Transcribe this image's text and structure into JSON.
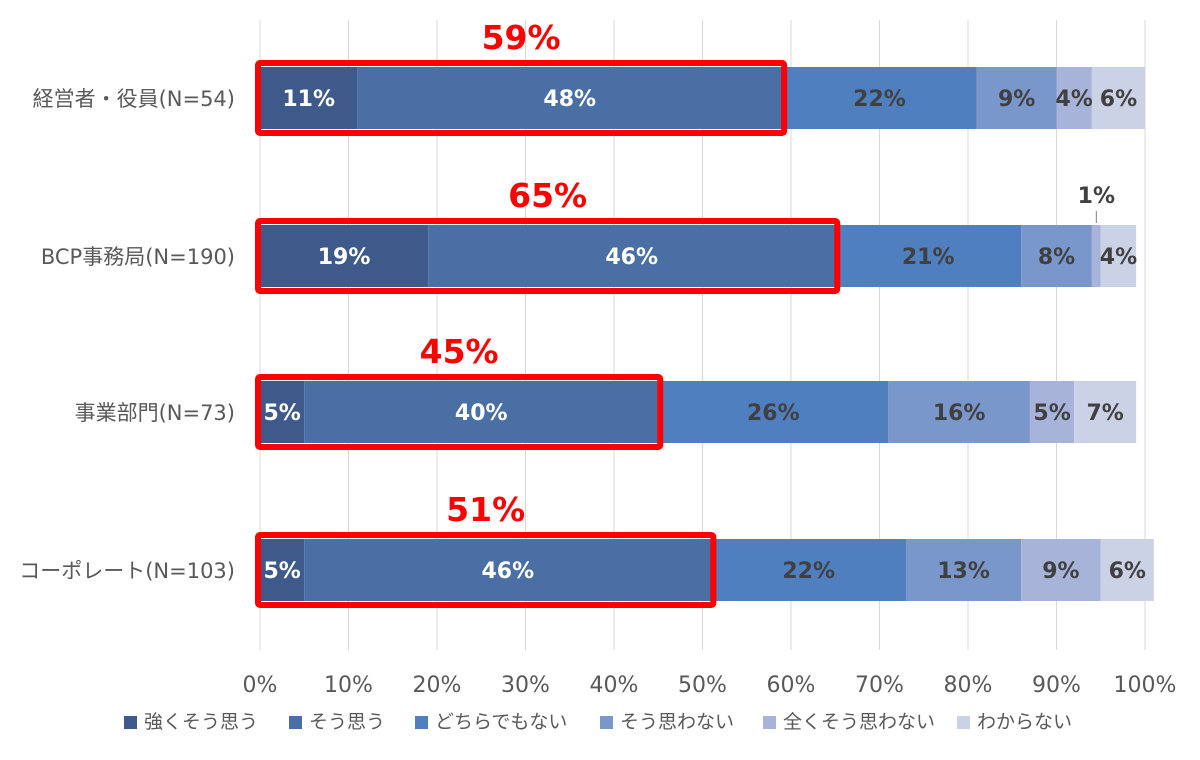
{
  "chart_data": {
    "type": "bar",
    "orientation": "horizontal",
    "stacked": true,
    "categories": [
      "経営者・役員(N=54)",
      "BCP事務局(N=190)",
      "事業部門(N=73)",
      "コーポレート(N=103)"
    ],
    "series": [
      {
        "name": "強くそう思う",
        "color": "#3d5a8a",
        "values": [
          11,
          19,
          5,
          5
        ],
        "labels": [
          "11%",
          "19%",
          "5%",
          "5%"
        ]
      },
      {
        "name": "そう思う",
        "color": "#4a6fa5",
        "values": [
          48,
          46,
          40,
          46
        ],
        "labels": [
          "48%",
          "46%",
          "40%",
          "46%"
        ]
      },
      {
        "name": "どちらでもない",
        "color": "#4f7fbf",
        "values": [
          22,
          21,
          26,
          22
        ],
        "labels": [
          "22%",
          "21%",
          "26%",
          "22%"
        ]
      },
      {
        "name": "そう思わない",
        "color": "#7a97cb",
        "values": [
          9,
          8,
          16,
          13
        ],
        "labels": [
          "9%",
          "8%",
          "16%",
          "13%"
        ]
      },
      {
        "name": "全くそう思わない",
        "color": "#a7b3d9",
        "values": [
          4,
          1,
          5,
          9
        ],
        "labels": [
          "4%",
          "1%",
          "5%",
          "9%"
        ]
      },
      {
        "name": "わからない",
        "color": "#ccd2e6",
        "values": [
          6,
          4,
          7,
          6
        ],
        "labels": [
          "6%",
          "4%",
          "7%",
          "6%"
        ]
      }
    ],
    "highlight_totals": [
      {
        "value": 59,
        "label": "59%"
      },
      {
        "value": 65,
        "label": "65%"
      },
      {
        "value": 45,
        "label": "45%"
      },
      {
        "value": 51,
        "label": "51%"
      }
    ],
    "x_ticks": [
      "0%",
      "10%",
      "20%",
      "30%",
      "40%",
      "50%",
      "60%",
      "70%",
      "80%",
      "90%",
      "100%"
    ],
    "xlim": [
      0,
      100
    ],
    "grid": true,
    "legend": "bottom",
    "title": "",
    "xlabel": "",
    "ylabel": ""
  }
}
